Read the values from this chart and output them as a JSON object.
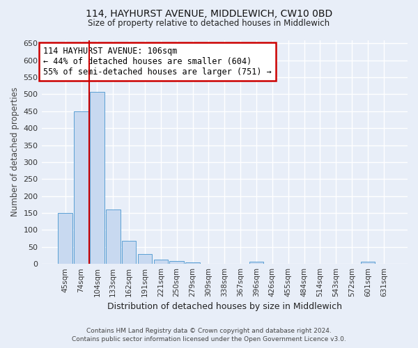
{
  "title": "114, HAYHURST AVENUE, MIDDLEWICH, CW10 0BD",
  "subtitle": "Size of property relative to detached houses in Middlewich",
  "xlabel": "Distribution of detached houses by size in Middlewich",
  "ylabel": "Number of detached properties",
  "footer_line1": "Contains HM Land Registry data © Crown copyright and database right 2024.",
  "footer_line2": "Contains public sector information licensed under the Open Government Licence v3.0.",
  "categories": [
    "45sqm",
    "74sqm",
    "104sqm",
    "133sqm",
    "162sqm",
    "191sqm",
    "221sqm",
    "250sqm",
    "279sqm",
    "309sqm",
    "338sqm",
    "367sqm",
    "396sqm",
    "426sqm",
    "455sqm",
    "484sqm",
    "514sqm",
    "543sqm",
    "572sqm",
    "601sqm",
    "631sqm"
  ],
  "bar_values": [
    150,
    450,
    507,
    160,
    68,
    30,
    13,
    9,
    5,
    0,
    0,
    0,
    6,
    0,
    0,
    0,
    0,
    0,
    0,
    6,
    0
  ],
  "bar_color": "#c8d9f0",
  "bar_edge_color": "#5a9fd4",
  "background_color": "#e8eef8",
  "grid_color": "#ffffff",
  "ylim": [
    0,
    660
  ],
  "yticks": [
    0,
    50,
    100,
    150,
    200,
    250,
    300,
    350,
    400,
    450,
    500,
    550,
    600,
    650
  ],
  "vline_x_index": 2,
  "vline_color": "#cc0000",
  "annotation_text": "114 HAYHURST AVENUE: 106sqm\n← 44% of detached houses are smaller (604)\n55% of semi-detached houses are larger (751) →",
  "annotation_box_color": "#ffffff",
  "annotation_border_color": "#cc0000"
}
